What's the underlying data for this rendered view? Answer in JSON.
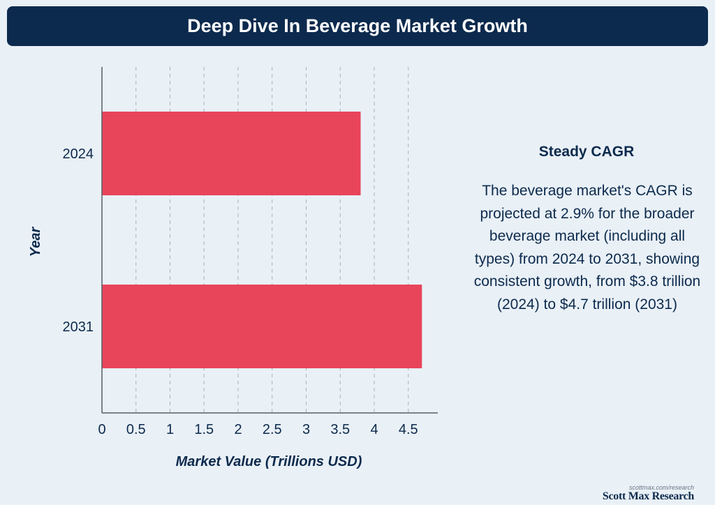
{
  "header": {
    "title": "Deep Dive In Beverage Market Growth"
  },
  "chart_data": {
    "type": "bar",
    "orientation": "horizontal",
    "title": "Deep Dive In Beverage Market Growth",
    "categories": [
      "2024",
      "2031"
    ],
    "values": [
      3.8,
      4.7
    ],
    "xlabel": "Market Value (Trillions USD)",
    "ylabel": "Year",
    "xlim": [
      0,
      4.9
    ],
    "xticks": [
      0,
      0.5,
      1,
      1.5,
      2,
      2.5,
      3,
      3.5,
      4,
      4.5
    ],
    "xtick_labels": [
      "0",
      "0.5",
      "1",
      "1.5",
      "2",
      "2.5",
      "3",
      "3.5",
      "4",
      "4.5"
    ],
    "grid": "vertical dashed",
    "bar_color": "#e8445a"
  },
  "sidebar": {
    "heading": "Steady CAGR",
    "body": "The beverage market's CAGR is projected at 2.9% for the broader beverage market (including all types) from 2024 to 2031, showing consistent growth, from $3.8 trillion (2024) to $4.7 trillion (2031)"
  },
  "branding": {
    "url": "scottmax.com/research",
    "name": "Scott Max Research"
  },
  "colors": {
    "background": "#e9f0f6",
    "navy": "#0c2a4d",
    "bar": "#e8445a",
    "grid": "#a9b0b8"
  }
}
